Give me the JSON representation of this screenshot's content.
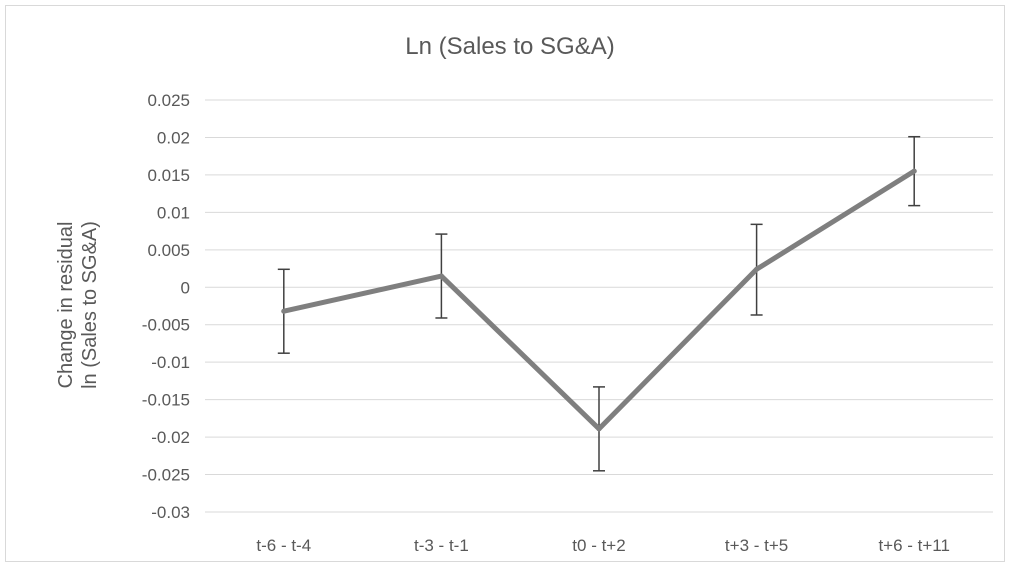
{
  "chart_data": {
    "type": "line",
    "title": "Ln (Sales to SG&A)",
    "xlabel": "",
    "ylabel": [
      "Change in residual",
      "ln (Sales to SG&A)"
    ],
    "categories": [
      "t-6 - t-4",
      "t-3 - t-1",
      "t0 - t+2",
      "t+3 - t+5",
      "t+6 - t+11"
    ],
    "series": [
      {
        "values": [
          -0.0032,
          0.0015,
          -0.0189,
          0.0024,
          0.0155
        ],
        "error_low": [
          -0.0088,
          -0.0041,
          -0.0245,
          -0.0037,
          0.0109
        ],
        "error_high": [
          0.0024,
          0.0071,
          -0.0133,
          0.0084,
          0.0201
        ],
        "color": "#7f7f7f"
      }
    ],
    "ylim": [
      -0.03,
      0.025
    ],
    "yticks": [
      0.025,
      0.02,
      0.015,
      0.01,
      0.005,
      0,
      -0.005,
      -0.01,
      -0.015,
      -0.02,
      -0.025,
      -0.03
    ],
    "ytick_labels": [
      "0.025",
      "0.02",
      "0.015",
      "0.01",
      "0.005",
      "0",
      "-0.005",
      "-0.01",
      "-0.015",
      "-0.02",
      "-0.025",
      "-0.03"
    ],
    "grid": true,
    "legend": "none"
  }
}
